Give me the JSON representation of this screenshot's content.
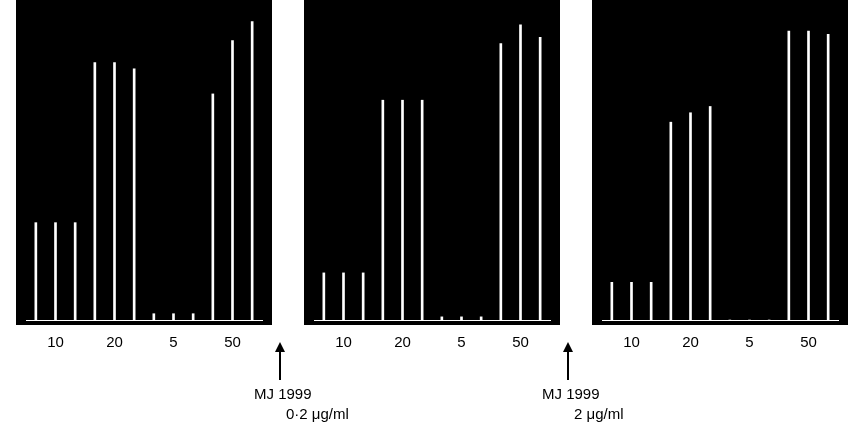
{
  "chart_data": [
    {
      "type": "bar",
      "categories": [
        null,
        "10",
        null,
        null,
        "20",
        null,
        null,
        "5",
        null,
        null,
        "50",
        null
      ],
      "values": [
        31,
        31,
        31,
        82,
        82,
        80,
        2,
        2,
        2,
        72,
        89,
        95
      ],
      "color": "#ffffff",
      "ylim": [
        0,
        100
      ],
      "grid": false,
      "tick_labels": "x"
    },
    {
      "type": "bar",
      "categories": [
        null,
        "10",
        null,
        null,
        "20",
        null,
        null,
        "5",
        null,
        null,
        "50",
        null
      ],
      "values": [
        15,
        15,
        15,
        70,
        70,
        70,
        1,
        1,
        1,
        88,
        94,
        90
      ],
      "color": "#ffffff",
      "ylim": [
        0,
        100
      ],
      "grid": false,
      "tick_labels": "x",
      "annotation": [
        "MJ 1999",
        "0·2 μg/ml"
      ]
    },
    {
      "type": "bar",
      "categories": [
        null,
        "10",
        null,
        null,
        "20",
        null,
        null,
        "5",
        null,
        null,
        "50",
        null
      ],
      "values": [
        12,
        12,
        12,
        63,
        66,
        68,
        0,
        0,
        0,
        92,
        92,
        91
      ],
      "color": "#ffffff",
      "ylim": [
        0,
        100
      ],
      "grid": false,
      "tick_labels": "x",
      "annotation": [
        "MJ 1999",
        "2 μg/ml"
      ]
    }
  ]
}
